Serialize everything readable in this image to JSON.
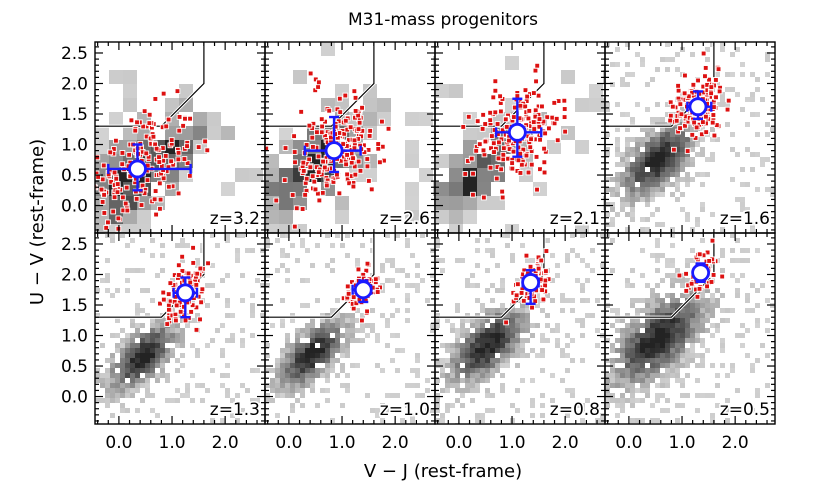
{
  "chart_data": {
    "type": "scatter",
    "title": "M31-mass progenitors",
    "xlabel": "V − J (rest-frame)",
    "ylabel": "U − V (rest-frame)",
    "xlim": [
      -0.45,
      2.75
    ],
    "ylim": [
      -0.45,
      2.68
    ],
    "x_ticks": [
      "0.0",
      "1.0",
      "2.0"
    ],
    "x_tick_values": [
      0.0,
      1.0,
      2.0
    ],
    "y_ticks": [
      "0.0",
      "0.5",
      "1.0",
      "1.5",
      "2.0",
      "2.5"
    ],
    "y_tick_values": [
      0.0,
      0.5,
      1.0,
      1.5,
      2.0,
      2.5
    ],
    "grid": false,
    "layout": "2 rows x 4 columns, shared axes",
    "colors": {
      "progenitor_points": "#dd1111",
      "median_marker": "#1a1aff",
      "quiescent_boundary": "#000000",
      "background_density": "grayscale"
    },
    "quiescent_boundary": {
      "description": "U-V > 1.3, U-V > 0.88*(V-J) + 0.59, V-J < 1.6",
      "points": [
        [
          -0.45,
          1.3
        ],
        [
          0.8,
          1.3
        ],
        [
          1.6,
          2.0
        ],
        [
          1.6,
          2.68
        ]
      ]
    },
    "panels": [
      {
        "label": "z=3.2",
        "median_vj": 0.35,
        "median_uv": 0.6,
        "vj_err": [
          0.55,
          1.0
        ],
        "uv_err": [
          0.35,
          0.4
        ],
        "spread_vj": 0.55,
        "spread_uv": 0.45,
        "n_points": 200,
        "bg_center": [
          0.4,
          0.55
        ],
        "bg_spread": [
          0.7,
          0.65
        ],
        "bg_blocky": true
      },
      {
        "label": "z=2.6",
        "median_vj": 0.85,
        "median_uv": 0.9,
        "vj_err": [
          0.55,
          0.5
        ],
        "uv_err": [
          0.35,
          0.55
        ],
        "spread_vj": 0.45,
        "spread_uv": 0.4,
        "n_points": 220,
        "bg_center": [
          0.45,
          0.65
        ],
        "bg_spread": [
          0.6,
          0.55
        ],
        "bg_blocky": true
      },
      {
        "label": "z=2.1",
        "median_vj": 1.1,
        "median_uv": 1.2,
        "vj_err": [
          0.4,
          0.45
        ],
        "uv_err": [
          0.4,
          0.55
        ],
        "spread_vj": 0.4,
        "spread_uv": 0.4,
        "n_points": 200,
        "bg_center": [
          0.4,
          0.6
        ],
        "bg_spread": [
          0.55,
          0.5
        ],
        "bg_blocky": true
      },
      {
        "label": "z=1.6",
        "median_vj": 1.3,
        "median_uv": 1.62,
        "vj_err": [
          0.2,
          0.25
        ],
        "uv_err": [
          0.2,
          0.25
        ],
        "spread_vj": 0.22,
        "spread_uv": 0.22,
        "n_points": 200,
        "bg_center": [
          0.55,
          0.75
        ],
        "bg_spread": [
          0.45,
          0.45
        ],
        "bg_blocky": false
      },
      {
        "label": "z=1.3",
        "median_vj": 1.25,
        "median_uv": 1.7,
        "vj_err": [
          0.22,
          0.22
        ],
        "uv_err": [
          0.4,
          0.25
        ],
        "spread_vj": 0.18,
        "spread_uv": 0.25,
        "n_points": 130,
        "bg_center": [
          0.45,
          0.65
        ],
        "bg_spread": [
          0.4,
          0.4
        ],
        "bg_blocky": false
      },
      {
        "label": "z=1.0",
        "median_vj": 1.4,
        "median_uv": 1.75,
        "vj_err": [
          0.2,
          0.15
        ],
        "uv_err": [
          0.2,
          0.15
        ],
        "spread_vj": 0.15,
        "spread_uv": 0.18,
        "n_points": 80,
        "bg_center": [
          0.45,
          0.7
        ],
        "bg_spread": [
          0.4,
          0.4
        ],
        "bg_blocky": false
      },
      {
        "label": "z=0.8",
        "median_vj": 1.35,
        "median_uv": 1.87,
        "vj_err": [
          0.15,
          0.15
        ],
        "uv_err": [
          0.35,
          0.2
        ],
        "spread_vj": 0.15,
        "spread_uv": 0.2,
        "n_points": 90,
        "bg_center": [
          0.55,
          0.85
        ],
        "bg_spread": [
          0.45,
          0.45
        ],
        "bg_blocky": false
      },
      {
        "label": "z=0.5",
        "median_vj": 1.35,
        "median_uv": 2.03,
        "vj_err": [
          0.1,
          0.1
        ],
        "uv_err": [
          0.15,
          0.15
        ],
        "spread_vj": 0.15,
        "spread_uv": 0.15,
        "n_points": 60,
        "bg_center": [
          0.55,
          0.95
        ],
        "bg_spread": [
          0.55,
          0.55
        ],
        "bg_blocky": false
      }
    ]
  }
}
